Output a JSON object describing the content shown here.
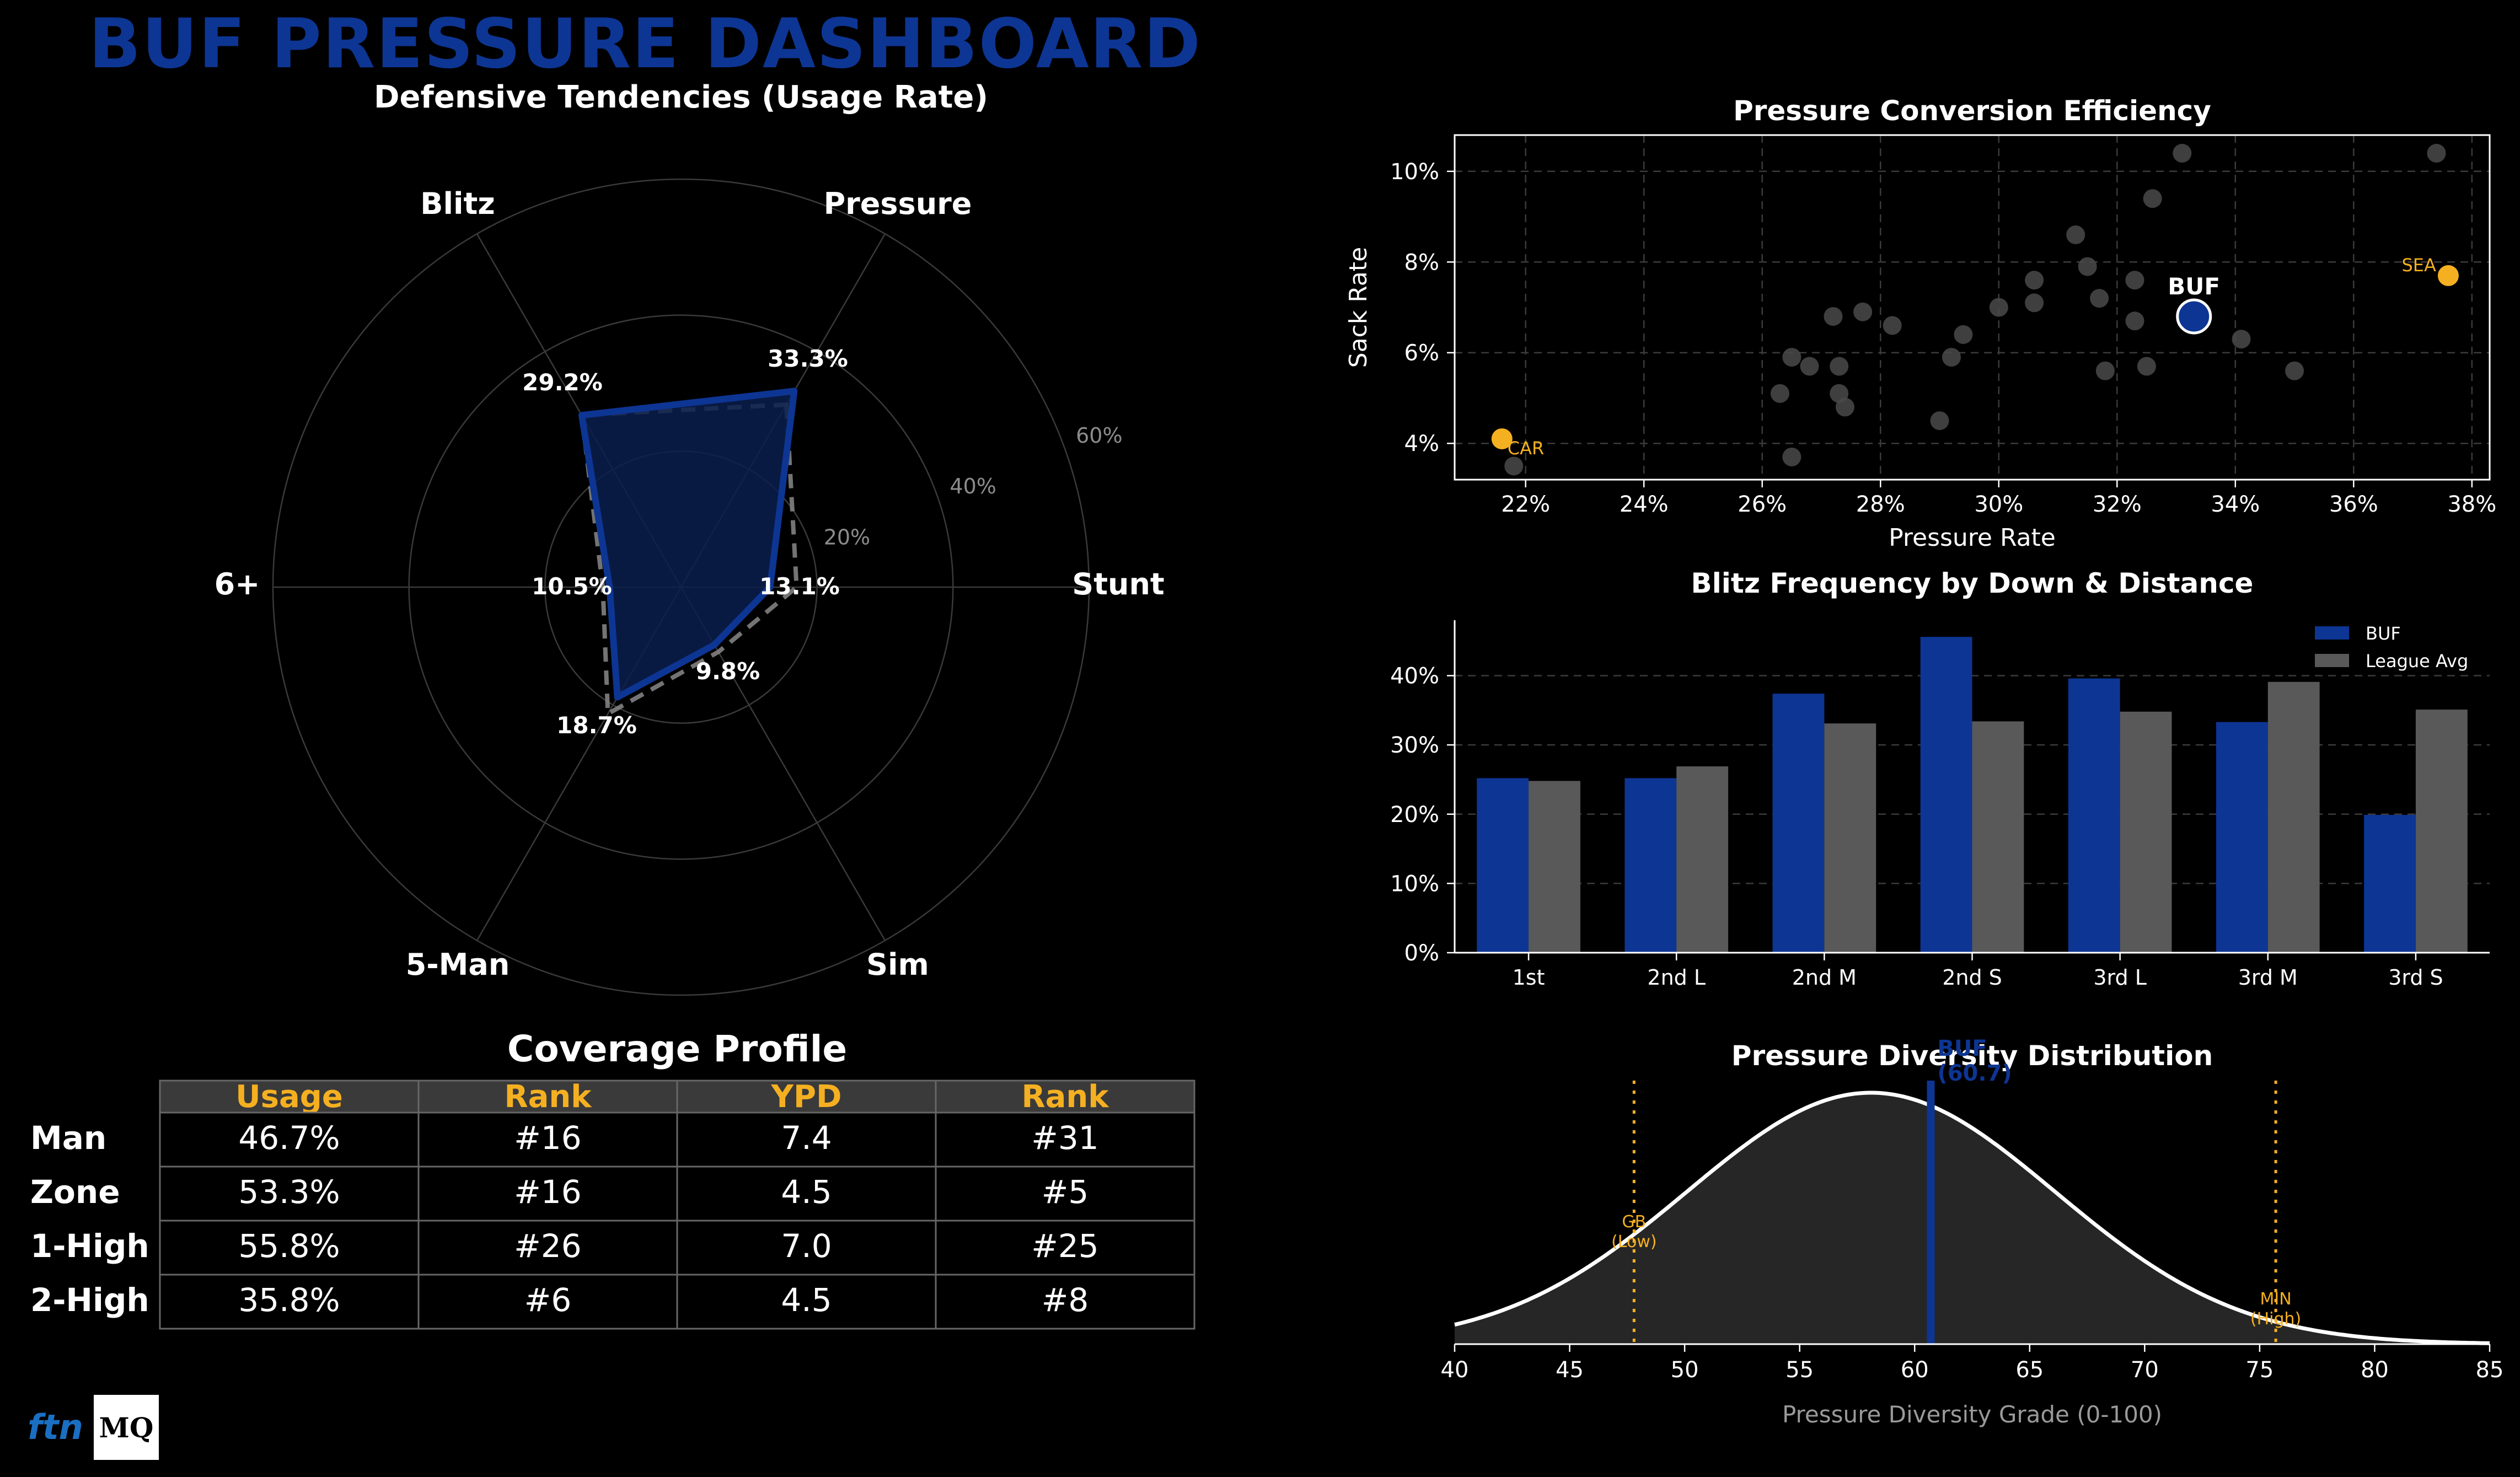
{
  "dashboard": {
    "title": "BUF PRESSURE DASHBOARD"
  },
  "colors": {
    "team": "#0d3593",
    "team_fill": "#0a1f4d",
    "league": "#595959",
    "highlight": "#f5b021",
    "scatter_dot": "#4a4a4a",
    "bg": "#000000"
  },
  "logos": {
    "ftn": "ftn",
    "mq": "MQ"
  },
  "chart_data": [
    {
      "id": "radar",
      "type": "radar",
      "title": "Defensive Tendencies (Usage Rate)",
      "axes": [
        "Pressure",
        "Stunt",
        "Sim",
        "5-Man",
        "6+",
        "Blitz"
      ],
      "radial_ticks": [
        20,
        40,
        60
      ],
      "radial_tick_labels": [
        "20%",
        "40%",
        "60%"
      ],
      "rmax": 60,
      "series": [
        {
          "name": "BUF",
          "values": [
            33.3,
            13.1,
            9.8,
            18.7,
            10.5,
            29.2
          ],
          "labels": [
            "33.3%",
            "13.1%",
            "9.8%",
            "18.7%",
            "10.5%",
            "29.2%"
          ]
        },
        {
          "name": "League Avg",
          "values": [
            31.0,
            17.0,
            11.0,
            21.5,
            11.5,
            29.2
          ]
        }
      ]
    },
    {
      "id": "scatter",
      "type": "scatter",
      "title": "Pressure Conversion Efficiency",
      "xlabel": "Pressure Rate",
      "ylabel": "Sack Rate",
      "xlim": [
        20.8,
        38.3
      ],
      "ylim": [
        3.2,
        10.8
      ],
      "xticks": [
        22,
        24,
        26,
        28,
        30,
        32,
        34,
        36,
        38
      ],
      "xtick_labels": [
        "22%",
        "24%",
        "26%",
        "28%",
        "30%",
        "32%",
        "34%",
        "36%",
        "38%"
      ],
      "yticks": [
        4,
        6,
        8,
        10
      ],
      "ytick_labels": [
        "4%",
        "6%",
        "8%",
        "10%"
      ],
      "points": [
        [
          21.8,
          3.5
        ],
        [
          26.5,
          3.7
        ],
        [
          26.3,
          5.1
        ],
        [
          26.5,
          5.9
        ],
        [
          26.8,
          5.7
        ],
        [
          27.2,
          6.8
        ],
        [
          27.3,
          5.7
        ],
        [
          27.3,
          5.1
        ],
        [
          27.4,
          4.8
        ],
        [
          27.7,
          6.9
        ],
        [
          28.2,
          6.6
        ],
        [
          29.0,
          4.5
        ],
        [
          29.2,
          5.9
        ],
        [
          29.4,
          6.4
        ],
        [
          30.0,
          7.0
        ],
        [
          30.6,
          7.1
        ],
        [
          30.6,
          7.6
        ],
        [
          31.3,
          8.6
        ],
        [
          31.5,
          7.9
        ],
        [
          31.7,
          7.2
        ],
        [
          31.8,
          5.6
        ],
        [
          32.3,
          6.7
        ],
        [
          32.3,
          7.6
        ],
        [
          32.5,
          5.7
        ],
        [
          32.6,
          9.4
        ],
        [
          33.1,
          10.4
        ],
        [
          34.1,
          6.3
        ],
        [
          35.0,
          5.6
        ],
        [
          37.4,
          10.4
        ]
      ],
      "highlights": [
        {
          "label": "BUF",
          "x": 33.3,
          "y": 6.8
        },
        {
          "label": "CAR",
          "x": 21.6,
          "y": 4.1
        },
        {
          "label": "SEA",
          "x": 37.6,
          "y": 7.7
        }
      ]
    },
    {
      "id": "bars",
      "type": "bar",
      "title": "Blitz Frequency by Down & Distance",
      "categories": [
        "1st",
        "2nd L",
        "2nd M",
        "2nd S",
        "3rd L",
        "3rd M",
        "3rd S"
      ],
      "ylim": [
        0,
        48
      ],
      "yticks": [
        0,
        10,
        20,
        30,
        40
      ],
      "ytick_labels": [
        "0%",
        "10%",
        "20%",
        "30%",
        "40%"
      ],
      "series": [
        {
          "name": "BUF",
          "values": [
            25.2,
            25.2,
            37.4,
            45.6,
            39.6,
            33.3,
            19.9
          ]
        },
        {
          "name": "League Avg",
          "values": [
            24.8,
            26.9,
            33.1,
            33.4,
            34.8,
            39.1,
            35.1
          ]
        }
      ]
    },
    {
      "id": "density",
      "type": "area",
      "title": "Pressure Diversity Distribution",
      "xlabel": "Pressure Diversity Grade (0-100)",
      "xlim": [
        40,
        85
      ],
      "xticks": [
        40,
        45,
        50,
        55,
        60,
        65,
        70,
        75,
        80,
        85
      ],
      "distribution": {
        "mean": 58.1,
        "sd": 8.0
      },
      "team_marker": {
        "x": 60.7,
        "label_line1": "BUF",
        "label_line2": "(60.7)"
      },
      "reference_lines": [
        {
          "x": 47.8,
          "line1": "GB",
          "line2": "(Low)"
        },
        {
          "x": 75.7,
          "line1": "MIN",
          "line2": "(High)"
        }
      ]
    }
  ],
  "coverage_table": {
    "title": "Coverage Profile",
    "headers": [
      "Usage",
      "Rank",
      "YPD",
      "Rank"
    ],
    "rows": [
      {
        "label": "Man",
        "cells": [
          "46.7%",
          "#16",
          "7.4",
          "#31"
        ]
      },
      {
        "label": "Zone",
        "cells": [
          "53.3%",
          "#16",
          "4.5",
          "#5"
        ]
      },
      {
        "label": "1-High",
        "cells": [
          "55.8%",
          "#26",
          "7.0",
          "#25"
        ]
      },
      {
        "label": "2-High",
        "cells": [
          "35.8%",
          "#6",
          "4.5",
          "#8"
        ]
      }
    ]
  }
}
